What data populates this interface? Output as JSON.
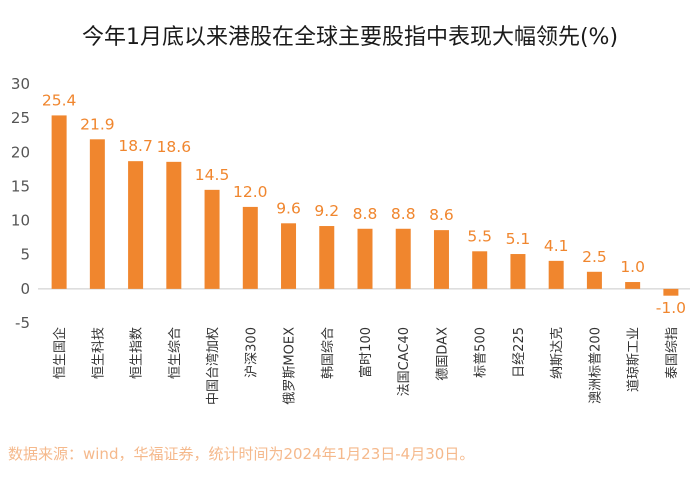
{
  "chart_data": {
    "type": "bar",
    "title": "今年1月底以来港股在全球主要股指中表现大幅领先(%)",
    "categories": [
      "恒生国企",
      "恒生科技",
      "恒生指数",
      "恒生综合",
      "中国台湾加权",
      "沪深300",
      "俄罗斯MOEX",
      "韩国综合",
      "富时100",
      "法国CAC40",
      "德国DAX",
      "标普500",
      "日经225",
      "纳斯达克",
      "澳洲标普200",
      "道琼斯工业",
      "泰国综指"
    ],
    "values": [
      25.4,
      21.9,
      18.7,
      18.6,
      14.5,
      12.0,
      9.6,
      9.2,
      8.8,
      8.8,
      8.6,
      5.5,
      5.1,
      4.1,
      2.5,
      1.0,
      -1.0
    ],
    "value_labels": [
      "25.4",
      "21.9",
      "18.7",
      "18.6",
      "14.5",
      "12.0",
      "9.6",
      "9.2",
      "8.8",
      "8.8",
      "8.6",
      "5.5",
      "5.1",
      "4.1",
      "2.5",
      "1.0",
      "-1.0"
    ],
    "ylim": [
      -5,
      30
    ],
    "yticks": [
      -5,
      0,
      5,
      10,
      15,
      20,
      25,
      30
    ],
    "ytick_labels": [
      "-5",
      "0",
      "5",
      "10",
      "15",
      "20",
      "25",
      "30"
    ],
    "xlabel": "",
    "ylabel": "",
    "grid": false,
    "bar_color": "#f0862e",
    "source_note": "数据来源：wind，华福证券，统计时间为2024年1月23日-4月30日。"
  }
}
